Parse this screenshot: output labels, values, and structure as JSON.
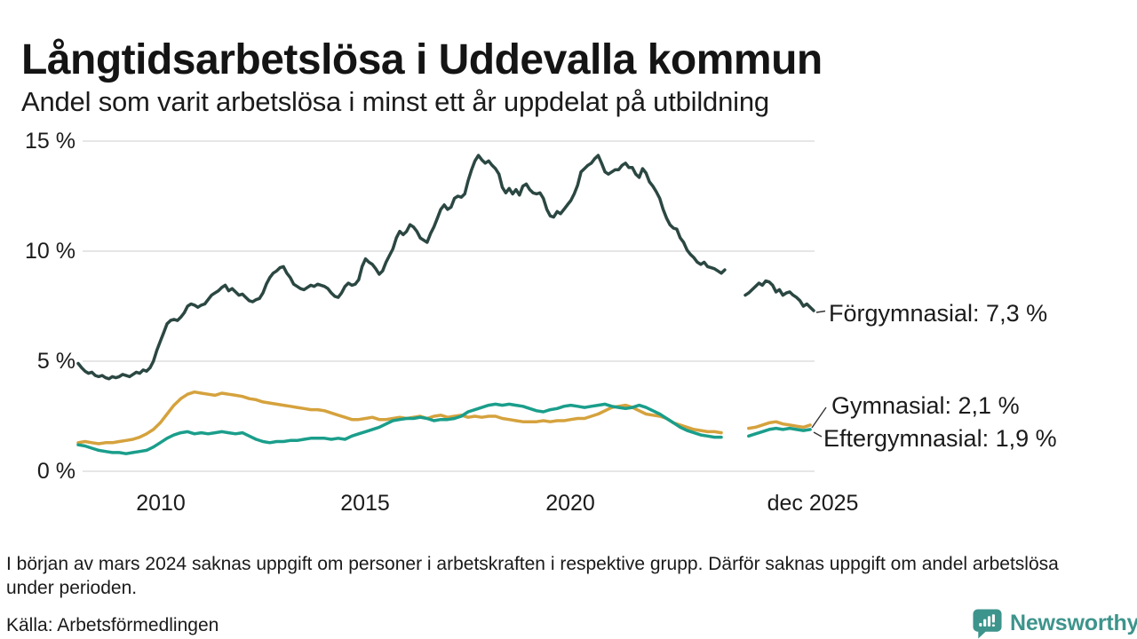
{
  "header": {
    "title": "Långtidsarbetslösa i Uddevalla kommun",
    "subtitle": "Andel som varit arbetslösa i minst ett år uppdelat på utbildning"
  },
  "chart_data": {
    "type": "line",
    "title": "Långtidsarbetslösa i Uddevalla kommun",
    "subtitle": "Andel som varit arbetslösa i minst ett år uppdelat på utbildning",
    "unit": "%",
    "grid": "horizontal",
    "legend_position": "right-end-labels",
    "x_axis": {
      "start_year": 2008.0,
      "end_year": 2025.917,
      "ticks": [
        "2010",
        "2015",
        "2020",
        "dec 2025"
      ],
      "tick_years": [
        2010,
        2015,
        2020,
        2025.917
      ]
    },
    "y_axis": {
      "ticks": [
        "15 %",
        "10 %",
        "5 %",
        "0 %"
      ],
      "values": [
        15,
        10,
        5,
        0
      ],
      "range": [
        0,
        15
      ]
    },
    "data_gap": "nov 2023 - mars 2024",
    "series": [
      {
        "name": "Förgymnasial",
        "end_label": "Förgymnasial: 7,3 %",
        "end_value": "7,3 %",
        "color": "#2b4742",
        "start_year": 2008,
        "step_months": 1,
        "values": [
          4.9,
          4.7,
          4.55,
          4.45,
          4.5,
          4.35,
          4.3,
          4.35,
          4.25,
          4.2,
          4.3,
          4.25,
          4.3,
          4.4,
          4.35,
          4.3,
          4.4,
          4.5,
          4.45,
          4.6,
          4.55,
          4.7,
          5.0,
          5.5,
          5.9,
          6.3,
          6.7,
          6.85,
          6.9,
          6.85,
          7.0,
          7.2,
          7.5,
          7.6,
          7.55,
          7.45,
          7.55,
          7.6,
          7.8,
          8.0,
          8.1,
          8.2,
          8.35,
          8.45,
          8.2,
          8.3,
          8.15,
          8.0,
          8.05,
          7.9,
          7.75,
          7.7,
          7.8,
          7.85,
          8.1,
          8.5,
          8.8,
          9.0,
          9.1,
          9.25,
          9.3,
          9.0,
          8.8,
          8.5,
          8.4,
          8.3,
          8.25,
          8.35,
          8.45,
          8.4,
          8.5,
          8.45,
          8.4,
          8.3,
          8.1,
          7.95,
          7.9,
          8.1,
          8.4,
          8.55,
          8.45,
          8.5,
          8.7,
          9.3,
          9.65,
          9.5,
          9.4,
          9.2,
          8.95,
          9.1,
          9.5,
          9.8,
          10.1,
          10.6,
          10.9,
          10.75,
          10.9,
          11.2,
          11.1,
          10.9,
          10.6,
          10.5,
          10.4,
          10.8,
          11.1,
          11.5,
          11.9,
          12.1,
          11.9,
          12.0,
          12.4,
          12.5,
          12.45,
          12.6,
          13.2,
          13.7,
          14.1,
          14.35,
          14.15,
          14.0,
          14.1,
          13.9,
          13.75,
          13.5,
          12.9,
          12.65,
          12.85,
          12.6,
          12.8,
          12.55,
          12.95,
          13.05,
          12.8,
          12.65,
          12.6,
          12.65,
          12.4,
          11.9,
          11.6,
          11.55,
          11.8,
          11.7,
          11.9,
          12.1,
          12.3,
          12.6,
          13.0,
          13.6,
          13.75,
          13.9,
          14.0,
          14.2,
          14.35,
          14.0,
          13.6,
          13.5,
          13.6,
          13.7,
          13.7,
          13.9,
          14.0,
          13.8,
          13.8,
          13.5,
          13.35,
          13.75,
          13.55,
          13.15,
          12.95,
          12.7,
          12.4,
          11.9,
          11.5,
          11.2,
          11.05,
          11.0,
          10.6,
          10.4,
          10.05,
          9.85,
          9.7,
          9.5,
          9.4,
          9.5,
          9.3,
          9.25,
          9.2,
          9.1,
          9.0,
          9.15,
          null,
          null,
          null,
          null,
          null,
          8.0,
          8.1,
          8.25,
          8.4,
          8.55,
          8.45,
          8.65,
          8.6,
          8.45,
          8.15,
          8.25,
          8.0,
          8.1,
          8.15,
          8.0,
          7.9,
          7.75,
          7.5,
          7.6,
          7.45,
          7.3
        ]
      },
      {
        "name": "Gymnasial",
        "end_label": "Gymnasial: 2,1 %",
        "end_value": "2,1 %",
        "color": "#d5a23d",
        "start_year": 2008,
        "step_months": 2,
        "values": [
          1.3,
          1.35,
          1.3,
          1.25,
          1.3,
          1.3,
          1.35,
          1.4,
          1.45,
          1.55,
          1.7,
          1.9,
          2.2,
          2.6,
          3.0,
          3.3,
          3.5,
          3.6,
          3.55,
          3.5,
          3.45,
          3.55,
          3.5,
          3.45,
          3.4,
          3.3,
          3.25,
          3.15,
          3.1,
          3.05,
          3.0,
          2.95,
          2.9,
          2.85,
          2.8,
          2.8,
          2.75,
          2.65,
          2.55,
          2.45,
          2.35,
          2.35,
          2.4,
          2.45,
          2.35,
          2.35,
          2.4,
          2.45,
          2.4,
          2.45,
          2.5,
          2.4,
          2.5,
          2.55,
          2.45,
          2.5,
          2.55,
          2.45,
          2.5,
          2.45,
          2.5,
          2.5,
          2.4,
          2.35,
          2.3,
          2.25,
          2.25,
          2.25,
          2.3,
          2.25,
          2.3,
          2.3,
          2.35,
          2.4,
          2.4,
          2.5,
          2.6,
          2.75,
          2.9,
          2.95,
          3.0,
          2.9,
          2.75,
          2.6,
          2.55,
          2.5,
          2.4,
          2.2,
          2.1,
          2.0,
          1.9,
          1.85,
          1.8,
          1.8,
          1.75,
          null,
          null,
          null,
          1.95,
          2.0,
          2.1,
          2.2,
          2.25,
          2.15,
          2.1,
          2.05,
          2.0,
          2.1
        ]
      },
      {
        "name": "Eftergymnasial",
        "end_label": "Eftergymnasial: 1,9 %",
        "end_value": "1,9 %",
        "color": "#1a9e8b",
        "start_year": 2008,
        "step_months": 2,
        "values": [
          1.2,
          1.15,
          1.05,
          0.95,
          0.9,
          0.85,
          0.85,
          0.8,
          0.85,
          0.9,
          0.95,
          1.1,
          1.3,
          1.5,
          1.65,
          1.75,
          1.8,
          1.7,
          1.75,
          1.7,
          1.75,
          1.8,
          1.75,
          1.7,
          1.75,
          1.6,
          1.45,
          1.35,
          1.3,
          1.35,
          1.35,
          1.4,
          1.4,
          1.45,
          1.5,
          1.5,
          1.5,
          1.45,
          1.5,
          1.45,
          1.6,
          1.7,
          1.8,
          1.9,
          2.0,
          2.15,
          2.3,
          2.35,
          2.4,
          2.4,
          2.45,
          2.4,
          2.3,
          2.35,
          2.35,
          2.4,
          2.5,
          2.7,
          2.8,
          2.9,
          3.0,
          3.05,
          3.0,
          3.05,
          3.0,
          2.95,
          2.85,
          2.75,
          2.7,
          2.8,
          2.85,
          2.95,
          3.0,
          2.95,
          2.9,
          2.95,
          3.0,
          3.05,
          2.95,
          2.9,
          2.85,
          2.9,
          3.0,
          2.9,
          2.75,
          2.6,
          2.4,
          2.2,
          2.0,
          1.85,
          1.75,
          1.65,
          1.6,
          1.55,
          1.55,
          null,
          null,
          null,
          1.6,
          1.7,
          1.8,
          1.9,
          1.95,
          1.9,
          1.95,
          1.9,
          1.85,
          1.9
        ]
      }
    ]
  },
  "footer": {
    "note": "I början av mars 2024 saknas uppgift om personer i arbetskraften i respektive grupp. Därför saknas uppgift om andel arbetslösa under perioden.",
    "source": "Källa: Arbetsförmedlingen",
    "brand": "Newsworthy",
    "brand_color": "#3d948c"
  }
}
